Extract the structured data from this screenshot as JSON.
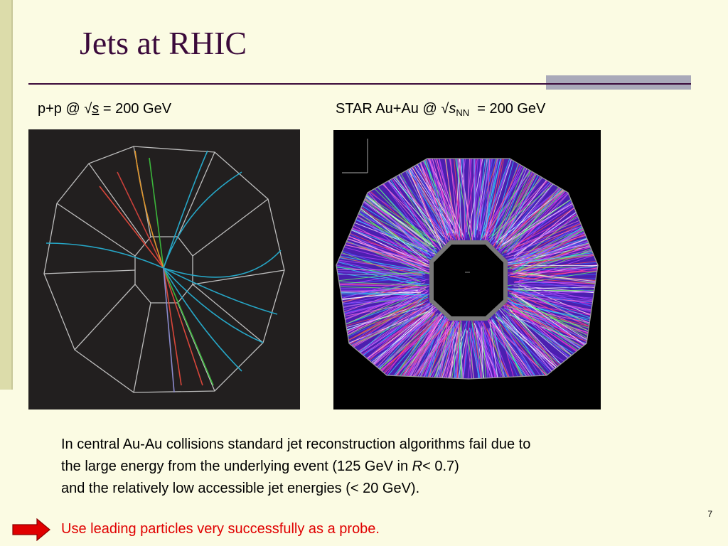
{
  "slide": {
    "title": "Jets at RHIC",
    "page_number": "7"
  },
  "captions": {
    "left_prefix": "p+p @ √",
    "left_symbol": "s",
    "left_suffix": " = 200 GeV",
    "right_prefix": "STAR Au+Au @ √",
    "right_symbol": "s",
    "right_subscript": "NN",
    "right_suffix": "  = 200 GeV"
  },
  "body": {
    "line1": "In central Au-Au collisions standard jet reconstruction algorithms fail due to",
    "line2_a": "the large energy from the underlying event (125 GeV in ",
    "line2_r": "R",
    "line2_b": "< 0.7)",
    "line3": "and the relatively low accessible jet energies (< 20 GeV).",
    "conclusion": "Use leading particles very successfully as a probe."
  },
  "colors": {
    "title": "#3b0a3b",
    "conclusion": "#e00000",
    "arrow": "#e00000"
  },
  "icons": {
    "arrow": "right-arrow-icon"
  }
}
